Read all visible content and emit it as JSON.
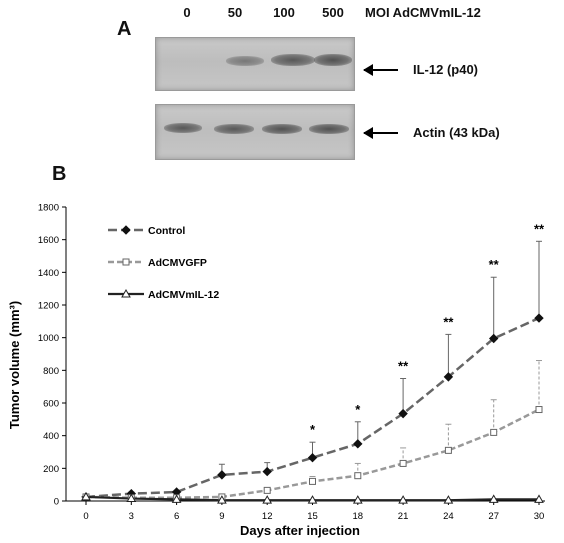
{
  "panel_a": {
    "label": "A",
    "lanes": [
      "0",
      "50",
      "100",
      "500"
    ],
    "moi_label": "MOI AdCMVmIL-12",
    "bands": [
      {
        "label": "IL-12 (p40)",
        "intensity": [
          0,
          0.55,
          0.8,
          0.85
        ]
      },
      {
        "label": "Actin  (43 kDa)",
        "intensity": [
          0.8,
          0.8,
          0.85,
          0.85
        ]
      }
    ]
  },
  "panel_b": {
    "label": "B"
  },
  "chart_data": {
    "type": "line",
    "xlabel": "Days after injection",
    "ylabel": "Tumor volume (mm³)",
    "x": [
      0,
      3,
      6,
      9,
      12,
      15,
      18,
      21,
      24,
      27,
      30
    ],
    "xlim": [
      0,
      30
    ],
    "ylim": [
      0,
      1800
    ],
    "xticks": [
      0,
      3,
      6,
      9,
      12,
      15,
      18,
      21,
      24,
      27,
      30
    ],
    "yticks": [
      0,
      200,
      400,
      600,
      800,
      1000,
      1200,
      1400,
      1600,
      1800
    ],
    "grid": false,
    "legend_position": "top-left",
    "series": [
      {
        "name": "Control",
        "marker": "diamond",
        "line": "dashed",
        "color": "#666666",
        "values": [
          25,
          45,
          55,
          160,
          180,
          265,
          350,
          535,
          760,
          995,
          1120
        ],
        "errors": [
          5,
          10,
          10,
          65,
          55,
          95,
          135,
          215,
          260,
          375,
          470
        ]
      },
      {
        "name": "AdCMVGFP",
        "marker": "square-open",
        "line": "dashed",
        "color": "#999999",
        "values": [
          25,
          20,
          20,
          25,
          65,
          120,
          155,
          230,
          310,
          420,
          560
        ],
        "errors": [
          5,
          5,
          5,
          5,
          15,
          30,
          75,
          95,
          160,
          200,
          300
        ]
      },
      {
        "name": "AdCMVmIL-12",
        "marker": "triangle-open",
        "line": "solid",
        "color": "#222222",
        "values": [
          25,
          15,
          10,
          5,
          5,
          5,
          5,
          5,
          5,
          10,
          10
        ],
        "errors": [
          0,
          0,
          0,
          0,
          0,
          0,
          0,
          0,
          0,
          0,
          0
        ]
      }
    ],
    "annotations": [
      {
        "x": 15,
        "text": "*"
      },
      {
        "x": 18,
        "text": "*"
      },
      {
        "x": 21,
        "text": "**"
      },
      {
        "x": 24,
        "text": "**"
      },
      {
        "x": 27,
        "text": "**"
      },
      {
        "x": 30,
        "text": "**"
      }
    ]
  }
}
